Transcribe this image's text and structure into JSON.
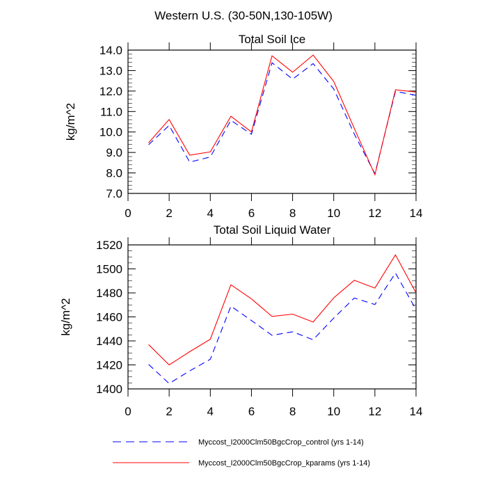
{
  "title": "Western U.S. (30-50N,130-105W)",
  "chart_data": [
    {
      "type": "line",
      "title": "Total Soil Ice",
      "xlabel": "",
      "ylabel": "kg/m^2",
      "xlim": [
        0,
        14
      ],
      "ylim": [
        7.0,
        14.0
      ],
      "xticks": [
        0,
        2,
        4,
        6,
        8,
        10,
        12,
        14
      ],
      "yticks": [
        7.0,
        8.0,
        9.0,
        10.0,
        11.0,
        12.0,
        13.0,
        14.0
      ],
      "ytick_labels": [
        "7.0",
        "8.0",
        "9.0",
        "10.0",
        "11.0",
        "12.0",
        "13.0",
        "14.0"
      ],
      "yminor_step": 0.2,
      "x": [
        1,
        2,
        3,
        4,
        5,
        6,
        7,
        8,
        9,
        10,
        11,
        12,
        13,
        14
      ],
      "series": [
        {
          "name": "Myccost_I2000Clm50BgcCrop_control (yrs 1-14)",
          "color": "#0000ff",
          "dash": true,
          "values": [
            9.38,
            10.32,
            8.53,
            8.78,
            10.57,
            9.89,
            13.38,
            12.58,
            13.34,
            12.1,
            9.9,
            7.96,
            11.98,
            11.79
          ]
        },
        {
          "name": "Myccost_I2000Clm50BgcCrop_kparams (yrs 1-14)",
          "color": "#ff0000",
          "dash": false,
          "values": [
            9.47,
            10.61,
            8.87,
            9.03,
            10.77,
            10.0,
            13.72,
            12.92,
            13.76,
            12.47,
            10.17,
            7.91,
            12.06,
            11.95
          ]
        }
      ]
    },
    {
      "type": "line",
      "title": "Total Soil Liquid Water",
      "xlabel": "",
      "ylabel": "kg/m^2",
      "xlim": [
        0,
        14
      ],
      "ylim": [
        1400,
        1520
      ],
      "xticks": [
        0,
        2,
        4,
        6,
        8,
        10,
        12,
        14
      ],
      "yticks": [
        1400,
        1420,
        1440,
        1460,
        1480,
        1500,
        1520
      ],
      "ytick_labels": [
        "1400",
        "1420",
        "1440",
        "1460",
        "1480",
        "1500",
        "1520"
      ],
      "yminor_step": 5,
      "x": [
        1,
        2,
        3,
        4,
        5,
        6,
        7,
        8,
        9,
        10,
        11,
        12,
        13,
        14
      ],
      "series": [
        {
          "name": "Myccost_I2000Clm50BgcCrop_control (yrs 1-14)",
          "color": "#0000ff",
          "dash": true,
          "values": [
            1420.4,
            1404.5,
            1415,
            1424.7,
            1469,
            1457,
            1444.7,
            1447.6,
            1441,
            1459,
            1475.7,
            1470.3,
            1496.5,
            1466
          ]
        },
        {
          "name": "Myccost_I2000Clm50BgcCrop_kparams (yrs 1-14)",
          "color": "#ff0000",
          "dash": false,
          "values": [
            1436.9,
            1420,
            1431,
            1441.4,
            1486.8,
            1475,
            1460.4,
            1462.3,
            1455.7,
            1475.9,
            1490.5,
            1484,
            1511.7,
            1480
          ]
        }
      ]
    }
  ],
  "legend": {
    "placement": "bottom",
    "entries": [
      {
        "label": "Myccost_I2000Clm50BgcCrop_control (yrs 1-14)",
        "color": "#0000ff",
        "dash": true
      },
      {
        "label": "Myccost_I2000Clm50BgcCrop_kparams (yrs 1-14)",
        "color": "#ff0000",
        "dash": false
      }
    ]
  }
}
